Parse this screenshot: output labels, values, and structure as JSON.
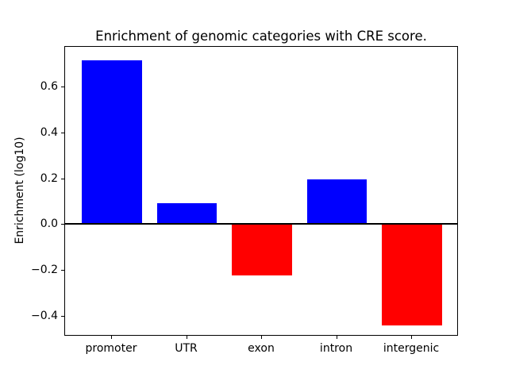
{
  "figure": {
    "background": "#ffffff"
  },
  "chart_data": {
    "type": "bar",
    "title": "Enrichment of genomic categories with CRE score.",
    "xlabel": "",
    "ylabel": "Enrichment (log10)",
    "categories": [
      "promoter",
      "UTR",
      "exon",
      "intron",
      "intergenic"
    ],
    "values": [
      0.72,
      0.095,
      -0.22,
      0.2,
      -0.44
    ],
    "bar_colors": [
      "#0000ff",
      "#0000ff",
      "#ff0000",
      "#0000ff",
      "#ff0000"
    ],
    "positive_color": "#0000ff",
    "negative_color": "#ff0000",
    "bar_width": 0.8,
    "yticks": [
      0.6,
      0.4,
      0.2,
      0.0,
      -0.2,
      -0.4
    ],
    "ytick_labels": [
      "0.6",
      "0.4",
      "0.2",
      "0.0",
      "−0.2",
      "−0.4"
    ],
    "ylim": [
      -0.488,
      0.778
    ],
    "xlim": [
      -0.625,
      4.625
    ],
    "grid": false,
    "legend": null,
    "zero_line": true,
    "axis_color": "#000000",
    "text_color": "#000000"
  }
}
